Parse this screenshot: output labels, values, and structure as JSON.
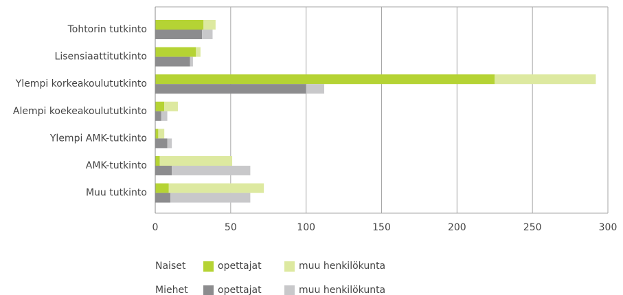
{
  "chart_data": {
    "type": "bar",
    "orientation": "horizontal",
    "stacked": true,
    "categories": [
      "Tohtorin tutkinto",
      "Lisensiaattitutkinto",
      "Ylempi korkeakoulututkinto",
      "Alempi koekeakoulututkinto",
      "Ylempi AMK-tutkinto",
      "AMK-tutkinto",
      "Muu tutkinto"
    ],
    "groups": [
      {
        "name": "Naiset",
        "series": [
          {
            "name": "opettajat",
            "color": "#b5d334",
            "values": [
              32,
              27,
              225,
              6,
              2,
              3,
              9
            ]
          },
          {
            "name": "muu henkilökunta",
            "color": "#dde9a0",
            "values": [
              8,
              3,
              67,
              9,
              4,
              48,
              63
            ]
          }
        ]
      },
      {
        "name": "Miehet",
        "series": [
          {
            "name": "opettajat",
            "color": "#8c8c8e",
            "values": [
              31,
              23,
              100,
              4,
              8,
              11,
              10
            ]
          },
          {
            "name": "muu henkilökunta",
            "color": "#c8c8ca",
            "values": [
              7,
              2,
              12,
              4,
              3,
              52,
              53
            ]
          }
        ]
      }
    ],
    "xlim": [
      0,
      300
    ],
    "xticks": [
      0,
      50,
      100,
      150,
      200,
      250,
      300
    ],
    "grid": true
  }
}
